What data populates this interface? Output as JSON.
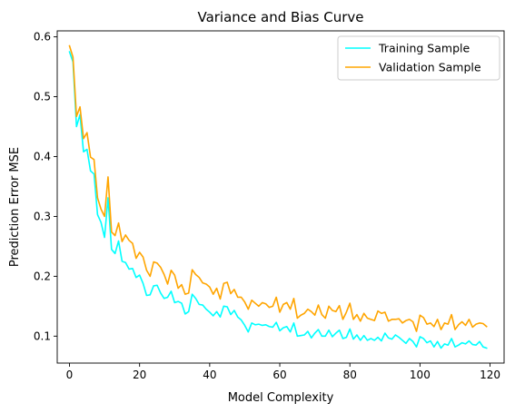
{
  "chart_data": {
    "type": "line",
    "title": "Variance and Bias Curve",
    "xlabel": "Model Complexity",
    "ylabel": "Prediction Error MSE",
    "xlim": [
      -3.5,
      124
    ],
    "ylim": [
      0.055,
      0.61
    ],
    "xticks": [
      0,
      20,
      40,
      60,
      80,
      100,
      120
    ],
    "yticks": [
      0.1,
      0.2,
      0.3,
      0.4,
      0.5,
      0.6
    ],
    "ytick_labels": [
      "0.1",
      "0.2",
      "0.3",
      "0.4",
      "0.5",
      "0.6"
    ],
    "grid": false,
    "legend_position": "upper right",
    "series": [
      {
        "name": "Training Sample",
        "color": "#00ffff",
        "values": [
          0.575,
          0.558,
          0.45,
          0.47,
          0.408,
          0.412,
          0.376,
          0.371,
          0.303,
          0.29,
          0.265,
          0.331,
          0.245,
          0.238,
          0.259,
          0.225,
          0.223,
          0.212,
          0.213,
          0.198,
          0.202,
          0.188,
          0.168,
          0.169,
          0.184,
          0.185,
          0.172,
          0.163,
          0.165,
          0.175,
          0.156,
          0.158,
          0.155,
          0.137,
          0.141,
          0.17,
          0.163,
          0.153,
          0.152,
          0.145,
          0.14,
          0.134,
          0.141,
          0.132,
          0.15,
          0.149,
          0.136,
          0.143,
          0.132,
          0.127,
          0.118,
          0.107,
          0.122,
          0.119,
          0.12,
          0.118,
          0.119,
          0.116,
          0.115,
          0.123,
          0.109,
          0.114,
          0.116,
          0.107,
          0.122,
          0.1,
          0.101,
          0.102,
          0.108,
          0.097,
          0.105,
          0.111,
          0.1,
          0.1,
          0.11,
          0.099,
          0.105,
          0.11,
          0.096,
          0.098,
          0.112,
          0.095,
          0.102,
          0.093,
          0.101,
          0.093,
          0.096,
          0.093,
          0.098,
          0.092,
          0.105,
          0.097,
          0.095,
          0.102,
          0.098,
          0.093,
          0.088,
          0.096,
          0.091,
          0.082,
          0.099,
          0.096,
          0.089,
          0.092,
          0.082,
          0.091,
          0.08,
          0.087,
          0.085,
          0.096,
          0.082,
          0.085,
          0.089,
          0.087,
          0.092,
          0.086,
          0.085,
          0.091,
          0.082,
          0.08
        ]
      },
      {
        "name": "Validation Sample",
        "color": "#ffa500",
        "values": [
          0.585,
          0.566,
          0.467,
          0.483,
          0.43,
          0.44,
          0.399,
          0.395,
          0.331,
          0.312,
          0.3,
          0.366,
          0.274,
          0.268,
          0.289,
          0.258,
          0.269,
          0.26,
          0.255,
          0.23,
          0.24,
          0.232,
          0.21,
          0.2,
          0.224,
          0.222,
          0.215,
          0.203,
          0.187,
          0.21,
          0.202,
          0.18,
          0.186,
          0.17,
          0.172,
          0.211,
          0.203,
          0.198,
          0.189,
          0.187,
          0.182,
          0.17,
          0.18,
          0.162,
          0.188,
          0.19,
          0.171,
          0.178,
          0.165,
          0.165,
          0.157,
          0.145,
          0.16,
          0.155,
          0.15,
          0.156,
          0.154,
          0.148,
          0.15,
          0.165,
          0.14,
          0.153,
          0.156,
          0.145,
          0.163,
          0.13,
          0.135,
          0.138,
          0.145,
          0.141,
          0.135,
          0.152,
          0.136,
          0.13,
          0.15,
          0.143,
          0.141,
          0.151,
          0.128,
          0.14,
          0.155,
          0.128,
          0.136,
          0.125,
          0.138,
          0.13,
          0.128,
          0.126,
          0.142,
          0.138,
          0.14,
          0.125,
          0.128,
          0.128,
          0.129,
          0.122,
          0.126,
          0.128,
          0.124,
          0.108,
          0.135,
          0.131,
          0.12,
          0.122,
          0.116,
          0.128,
          0.111,
          0.122,
          0.12,
          0.136,
          0.111,
          0.119,
          0.124,
          0.118,
          0.128,
          0.115,
          0.12,
          0.122,
          0.121,
          0.116
        ]
      }
    ]
  }
}
